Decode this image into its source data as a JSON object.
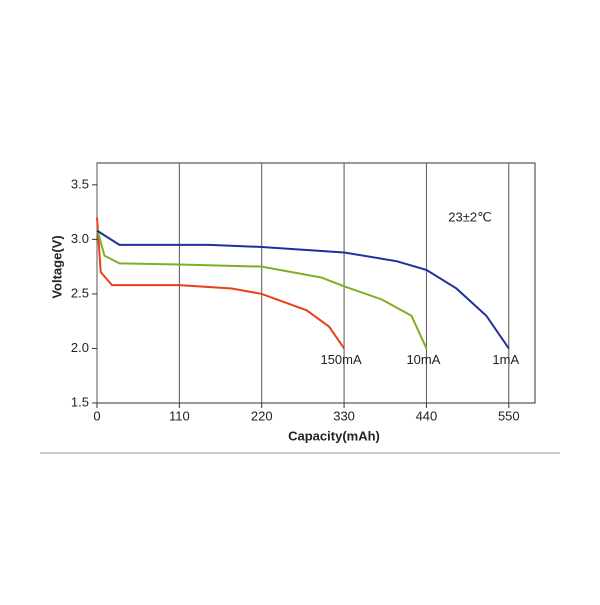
{
  "chart_data": {
    "type": "line",
    "x_label": "Capacity(mAh)",
    "y_label": "Voltage(V)",
    "annotation": "23±2℃",
    "xlim": [
      0,
      585
    ],
    "ylim": [
      1.5,
      3.7
    ],
    "xticks": [
      0,
      110,
      220,
      330,
      440,
      550
    ],
    "yticks": [
      {
        "value": 1.5,
        "label": "1.5"
      },
      {
        "value": 2,
        "label": "2.0"
      },
      2.5,
      {
        "value": 3,
        "label": "3.0"
      },
      3.5
    ],
    "grid": "x",
    "series": [
      {
        "name": "150mA",
        "color": "#e8401c",
        "x": [
          0,
          5,
          20,
          110,
          180,
          220,
          280,
          310,
          330
        ],
        "values": [
          3.2,
          2.7,
          2.58,
          2.58,
          2.55,
          2.5,
          2.35,
          2.2,
          2.0
        ]
      },
      {
        "name": "10mA",
        "color": "#7fae1f",
        "x": [
          0,
          10,
          30,
          110,
          220,
          300,
          330,
          380,
          420,
          440
        ],
        "values": [
          3.1,
          2.85,
          2.78,
          2.77,
          2.75,
          2.65,
          2.57,
          2.45,
          2.3,
          2.0
        ]
      },
      {
        "name": "1mA",
        "color": "#1f2f9e",
        "x": [
          0,
          30,
          150,
          220,
          330,
          400,
          440,
          480,
          520,
          550
        ],
        "values": [
          3.08,
          2.95,
          2.95,
          2.93,
          2.88,
          2.8,
          2.72,
          2.55,
          2.3,
          2.0
        ]
      }
    ]
  }
}
